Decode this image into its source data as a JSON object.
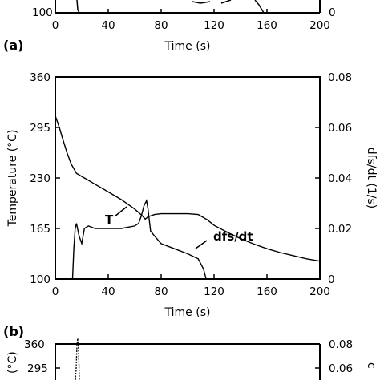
{
  "chart_data": [
    {
      "panel_label": "(a)",
      "type": "line",
      "xlabel": "Time (s)",
      "xlim": [
        0,
        200
      ],
      "x_ticks": [
        "0",
        "40",
        "80",
        "120",
        "160",
        "200"
      ],
      "y_left_ticks": [
        "100"
      ],
      "y_right_ticks": [
        "0"
      ],
      "partial": true
    },
    {
      "panel_label": "(b)",
      "type": "line",
      "xlabel": "Time (s)",
      "ylabel_left": "Temperature (°C)",
      "ylabel_right": "dfs/dt (1/s)",
      "xlim": [
        0,
        200
      ],
      "ylim_left": [
        100,
        360
      ],
      "ylim_right": [
        0,
        0.08
      ],
      "x_ticks": [
        "0",
        "40",
        "80",
        "120",
        "160",
        "200"
      ],
      "y_left_ticks": [
        "100",
        "165",
        "230",
        "295",
        "360"
      ],
      "y_right_ticks": [
        "0",
        "0.02",
        "0.04",
        "0.06",
        "0.08"
      ],
      "series": [
        {
          "name": "T",
          "axis": "left",
          "x": [
            0,
            3,
            6,
            9,
            12,
            16,
            20,
            25,
            30,
            40,
            50,
            60,
            66,
            68,
            70,
            75,
            80,
            90,
            100,
            108,
            115,
            120,
            130,
            140,
            150,
            160,
            170,
            180,
            190,
            200
          ],
          "y": [
            310,
            295,
            278,
            262,
            248,
            236,
            232,
            227,
            222,
            212,
            202,
            190,
            181,
            177,
            180,
            183,
            184,
            184,
            184,
            183,
            176,
            169,
            160,
            152,
            145,
            139,
            134,
            130,
            126,
            123
          ]
        },
        {
          "name": "dfs/dt",
          "axis": "right",
          "x": [
            13,
            14,
            15,
            16,
            18,
            20,
            22,
            25,
            30,
            40,
            50,
            60,
            63,
            65,
            67,
            69,
            70,
            72,
            75,
            80,
            90,
            100,
            108,
            112,
            114
          ],
          "y": [
            0,
            0.012,
            0.02,
            0.022,
            0.017,
            0.014,
            0.02,
            0.021,
            0.02,
            0.02,
            0.02,
            0.021,
            0.022,
            0.025,
            0.029,
            0.031,
            0.028,
            0.019,
            0.017,
            0.014,
            0.012,
            0.01,
            0.008,
            0.004,
            0
          ]
        }
      ],
      "annotations": [
        {
          "text": "T",
          "target_series": "T"
        },
        {
          "text": "dfs/dt",
          "target_series": "dfs/dt"
        }
      ]
    },
    {
      "panel_label": "",
      "type": "line",
      "xlim": [
        0,
        200
      ],
      "ylim_left": [
        100,
        360
      ],
      "ylim_right": [
        0,
        0.08
      ],
      "y_left_ticks": [
        "360",
        "295"
      ],
      "y_right_ticks": [
        "0.08",
        "0.06"
      ],
      "partial": true
    }
  ]
}
